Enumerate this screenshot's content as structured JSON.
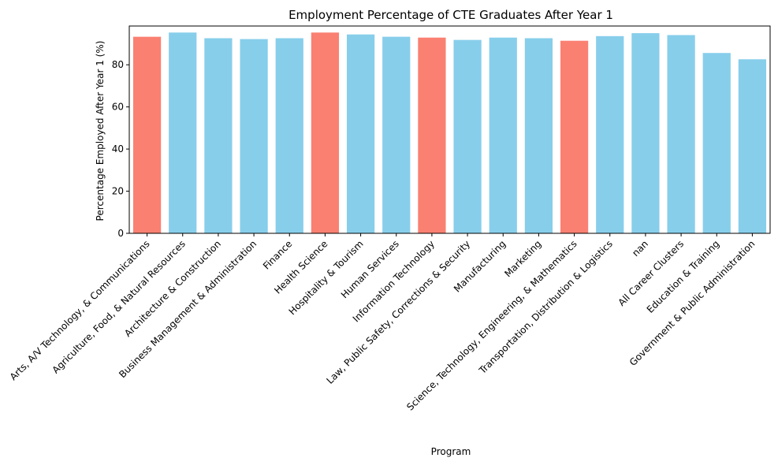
{
  "chart_data": {
    "type": "bar",
    "title": "Employment Percentage of CTE Graduates After Year 1",
    "xlabel": "Program",
    "ylabel": "Percentage Employed After Year 1 (%)",
    "ylim": [
      0,
      98.4
    ],
    "yticks": [
      0,
      20,
      40,
      60,
      80
    ],
    "grid": false,
    "categories": [
      "Arts, A/V Technology, & Communications",
      "Agriculture, Food, & Natural Resources",
      "Architecture & Construction",
      "Business Management  & Administration",
      "Finance",
      "Health Science",
      "Hospitality & Tourism",
      "Human Services",
      "Information Technology",
      "Law, Public Safety, Corrections & Security",
      "Manufacturing",
      "Marketing",
      "Science, Technology, Engineering, & Mathematics",
      "Transportation, Distribution & Logistics",
      "nan",
      "All Career Clusters",
      "Education & Training",
      "Government & Public Administration"
    ],
    "values": [
      93.3,
      95.3,
      92.6,
      92.2,
      92.6,
      95.3,
      94.4,
      93.3,
      92.9,
      91.8,
      92.9,
      92.6,
      91.4,
      93.6,
      95.0,
      94.1,
      85.6,
      82.6
    ],
    "colors": [
      "salmon",
      "skyblue",
      "skyblue",
      "skyblue",
      "skyblue",
      "salmon",
      "skyblue",
      "skyblue",
      "salmon",
      "skyblue",
      "skyblue",
      "skyblue",
      "salmon",
      "skyblue",
      "skyblue",
      "skyblue",
      "skyblue",
      "skyblue"
    ],
    "palette": {
      "salmon": "#fa8072",
      "skyblue": "#87ceeb"
    }
  }
}
